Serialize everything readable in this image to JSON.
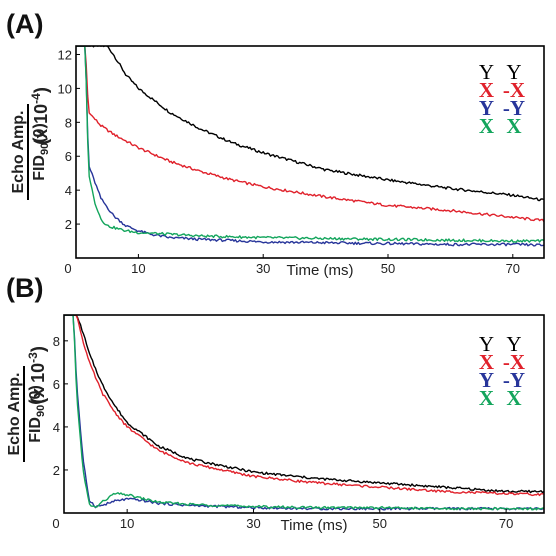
{
  "chart_data": [
    {
      "panel_label": "(A)",
      "type": "line",
      "xlabel": "Time (ms)",
      "ylabel_top": "Echo Amp.",
      "ylabel_bottom": "FID90(0)",
      "scale": "(x 10-4)",
      "xlim": [
        0,
        75
      ],
      "ylim": [
        0,
        12.5
      ],
      "xticks": [
        10,
        30,
        50,
        70
      ],
      "yticks": [
        2,
        4,
        6,
        8,
        10,
        12
      ],
      "legend_position": "top-right",
      "series": [
        {
          "name": "Y Y",
          "color": "#000000",
          "x": [
            0,
            2,
            4,
            5,
            6,
            8,
            10,
            15,
            20,
            25,
            30,
            40,
            50,
            60,
            70,
            75
          ],
          "y": [
            12.5,
            12.5,
            12.5,
            12.5,
            12.0,
            10.8,
            10.0,
            8.6,
            7.6,
            6.8,
            6.2,
            5.2,
            4.6,
            4.1,
            3.7,
            3.4
          ]
        },
        {
          "name": "X -X",
          "color": "#e0212b",
          "x": [
            0,
            1.5,
            2,
            3,
            4,
            6,
            8,
            10,
            15,
            20,
            25,
            30,
            40,
            50,
            60,
            70,
            75
          ],
          "y": [
            12.5,
            12.5,
            8.6,
            8.2,
            7.8,
            7.3,
            6.9,
            6.5,
            5.7,
            5.1,
            4.6,
            4.2,
            3.6,
            3.1,
            2.8,
            2.4,
            2.2
          ]
        },
        {
          "name": "Y -Y",
          "color": "#27359a",
          "x": [
            0,
            1.5,
            2,
            3,
            4,
            6,
            8,
            10,
            12,
            15,
            20,
            30,
            40,
            50,
            60,
            70,
            75
          ],
          "y": [
            12.5,
            12.5,
            5.5,
            4.5,
            3.5,
            2.5,
            1.9,
            1.6,
            1.4,
            1.2,
            1.1,
            0.95,
            0.9,
            0.85,
            0.8,
            0.8,
            0.75
          ]
        },
        {
          "name": "X X",
          "color": "#13a55c",
          "x": [
            0,
            1.5,
            2,
            3,
            4,
            5,
            6,
            8,
            10,
            15,
            20,
            30,
            40,
            50,
            60,
            70,
            75
          ],
          "y": [
            12.5,
            12.5,
            5.0,
            3.3,
            2.3,
            1.9,
            1.8,
            1.6,
            1.5,
            1.4,
            1.3,
            1.2,
            1.15,
            1.1,
            1.05,
            1.0,
            1.0
          ]
        }
      ]
    },
    {
      "panel_label": "(B)",
      "type": "line",
      "xlabel": "Time (ms)",
      "ylabel_top": "Echo Amp.",
      "ylabel_bottom": "FID90(0)",
      "scale": "(x 10-3)",
      "xlim": [
        0,
        76
      ],
      "ylim": [
        0,
        9.2
      ],
      "xticks": [
        10,
        30,
        50,
        70
      ],
      "yticks": [
        2,
        4,
        6,
        8
      ],
      "legend_position": "top-right",
      "series": [
        {
          "name": "Y Y",
          "color": "#000000",
          "x": [
            0,
            2,
            3,
            4,
            6,
            8,
            10,
            15,
            20,
            25,
            30,
            40,
            50,
            60,
            70,
            76
          ],
          "y": [
            9.2,
            9.2,
            8.4,
            7.4,
            6.0,
            5.0,
            4.2,
            3.1,
            2.5,
            2.2,
            1.9,
            1.6,
            1.4,
            1.2,
            1.0,
            1.0
          ]
        },
        {
          "name": "X -X",
          "color": "#e0212b",
          "x": [
            0,
            2,
            3,
            4,
            6,
            8,
            10,
            15,
            20,
            25,
            30,
            40,
            50,
            60,
            70,
            76
          ],
          "y": [
            9.2,
            9.2,
            8.0,
            7.0,
            5.6,
            4.7,
            4.0,
            2.9,
            2.3,
            2.0,
            1.7,
            1.4,
            1.2,
            1.0,
            0.9,
            0.85
          ]
        },
        {
          "name": "Y -Y",
          "color": "#27359a",
          "x": [
            0,
            1.5,
            2,
            3,
            4,
            5,
            6,
            8,
            10,
            12,
            15,
            20,
            30,
            40,
            50,
            60,
            70,
            76
          ],
          "y": [
            9.2,
            9.2,
            6.0,
            2.5,
            0.6,
            0.3,
            0.35,
            0.55,
            0.65,
            0.6,
            0.45,
            0.35,
            0.25,
            0.2,
            0.2,
            0.2,
            0.2,
            0.2
          ]
        },
        {
          "name": "X X",
          "color": "#13a55c",
          "x": [
            0,
            1.5,
            2,
            3,
            4,
            5,
            6,
            8,
            10,
            12,
            15,
            20,
            30,
            40,
            50,
            60,
            70,
            76
          ],
          "y": [
            9.2,
            9.2,
            5.5,
            2.0,
            0.4,
            0.25,
            0.5,
            0.9,
            0.85,
            0.7,
            0.5,
            0.4,
            0.3,
            0.25,
            0.25,
            0.2,
            0.2,
            0.2
          ]
        }
      ]
    }
  ]
}
